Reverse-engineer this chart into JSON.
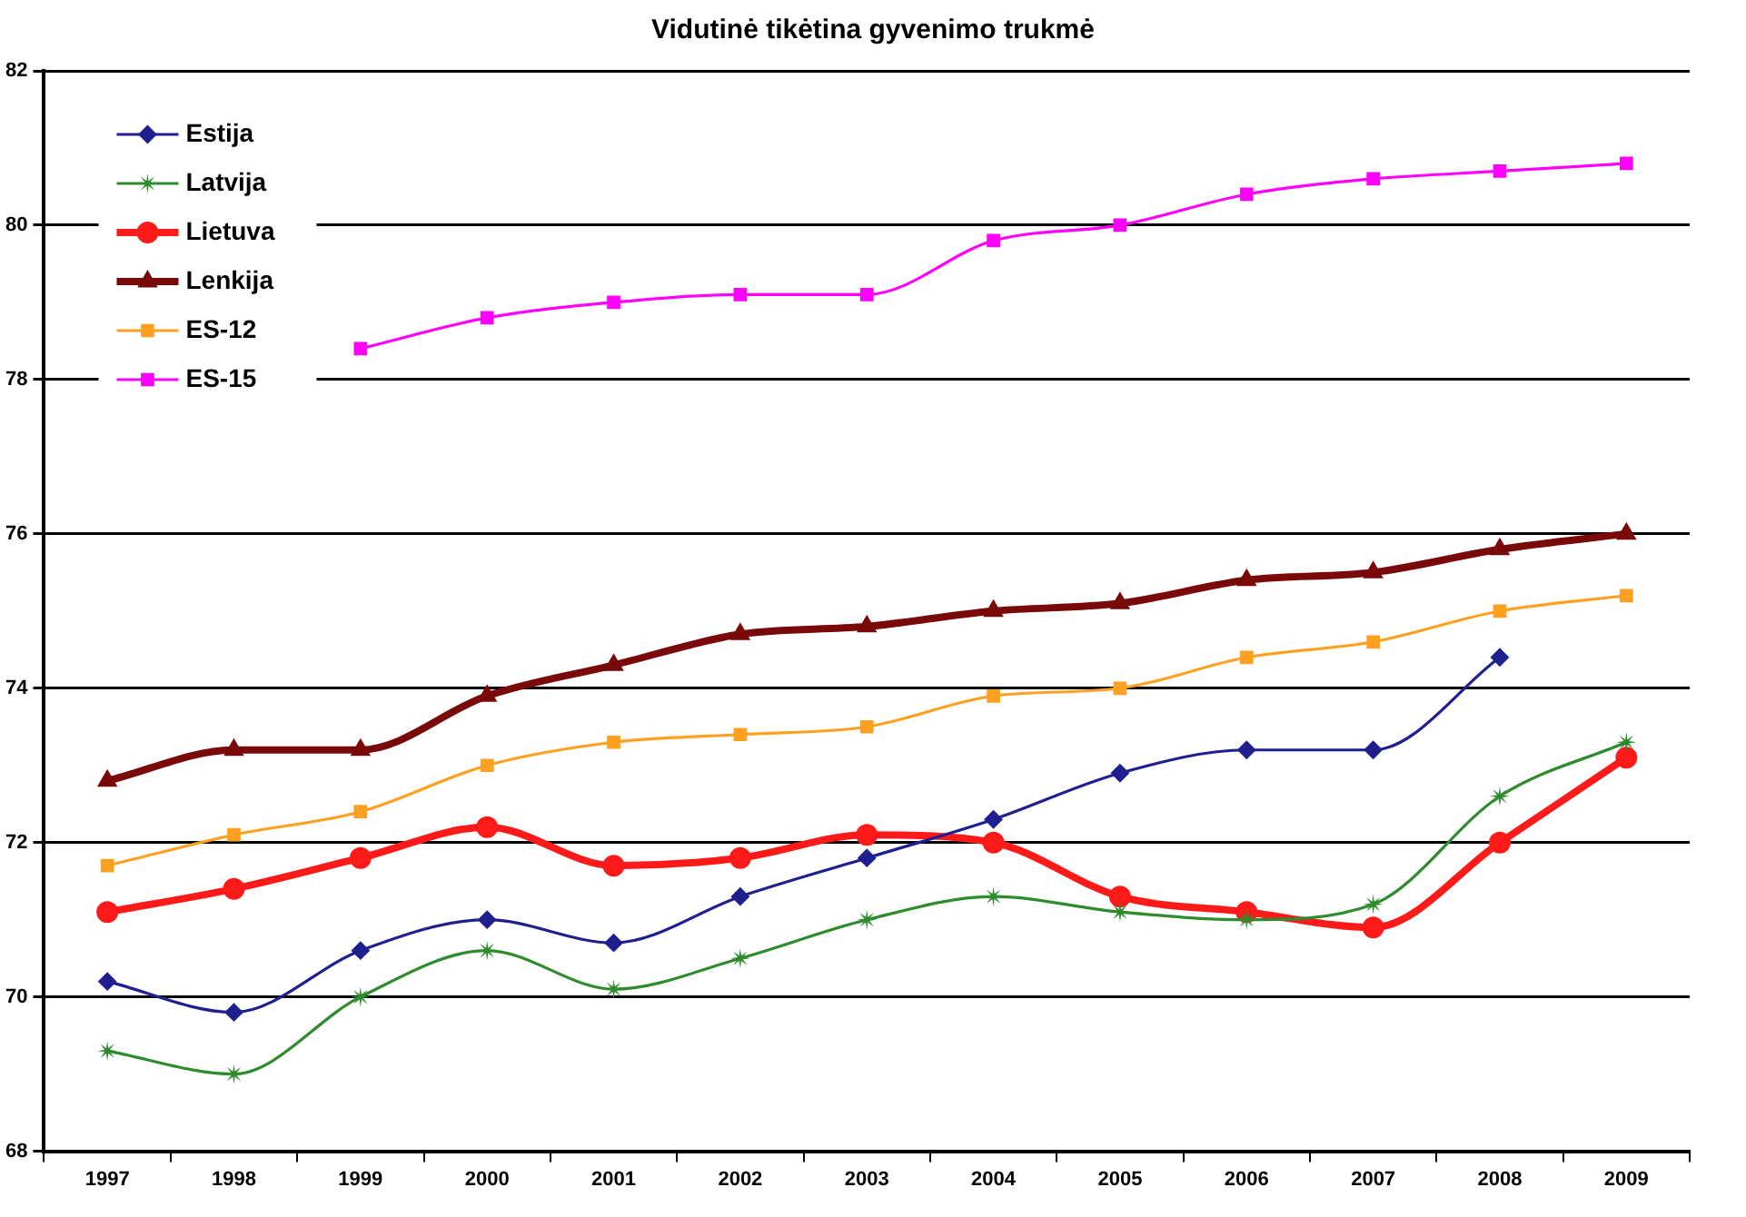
{
  "chart_data": {
    "type": "line",
    "title": "Vidutinė tikėtina gyvenimo trukmė",
    "categories": [
      "1997",
      "1998",
      "1999",
      "2000",
      "2001",
      "2002",
      "2003",
      "2004",
      "2005",
      "2006",
      "2007",
      "2008",
      "2009"
    ],
    "series": [
      {
        "name": "Estija",
        "color": "#1f1f8f",
        "marker": "diamond",
        "values": [
          70.2,
          69.8,
          70.6,
          71.0,
          70.7,
          71.3,
          71.8,
          72.3,
          72.9,
          73.2,
          73.2,
          74.4,
          null
        ]
      },
      {
        "name": "Latvija",
        "color": "#2e8b2e",
        "marker": "star",
        "values": [
          69.3,
          69.0,
          70.0,
          70.6,
          70.1,
          70.5,
          71.0,
          71.3,
          71.1,
          71.0,
          71.2,
          72.6,
          73.3
        ]
      },
      {
        "name": "Lietuva",
        "color": "#ff1a1a",
        "marker": "circle",
        "values": [
          71.1,
          71.4,
          71.8,
          72.2,
          71.7,
          71.8,
          72.1,
          72.0,
          71.3,
          71.1,
          70.9,
          72.0,
          73.1
        ]
      },
      {
        "name": "Lenkija",
        "color": "#7a0a0a",
        "marker": "triangle",
        "values": [
          72.8,
          73.2,
          73.2,
          73.9,
          74.3,
          74.7,
          74.8,
          75.0,
          75.1,
          75.4,
          75.5,
          75.8,
          76.0
        ]
      },
      {
        "name": "ES-12",
        "color": "#ffa020",
        "marker": "square",
        "values": [
          71.7,
          72.1,
          72.4,
          73.0,
          73.3,
          73.4,
          73.5,
          73.9,
          74.0,
          74.4,
          74.6,
          75.0,
          75.2
        ]
      },
      {
        "name": "ES-15",
        "color": "#ff00ff",
        "marker": "square",
        "values": [
          null,
          null,
          78.4,
          78.8,
          79.0,
          79.1,
          79.1,
          79.8,
          80.0,
          80.4,
          80.6,
          80.7,
          80.8
        ]
      }
    ],
    "ylim": [
      68,
      82
    ],
    "yticks": [
      68,
      70,
      72,
      74,
      76,
      78,
      80,
      82
    ],
    "grid": "y",
    "legend": "top left",
    "line_style": "solid"
  }
}
